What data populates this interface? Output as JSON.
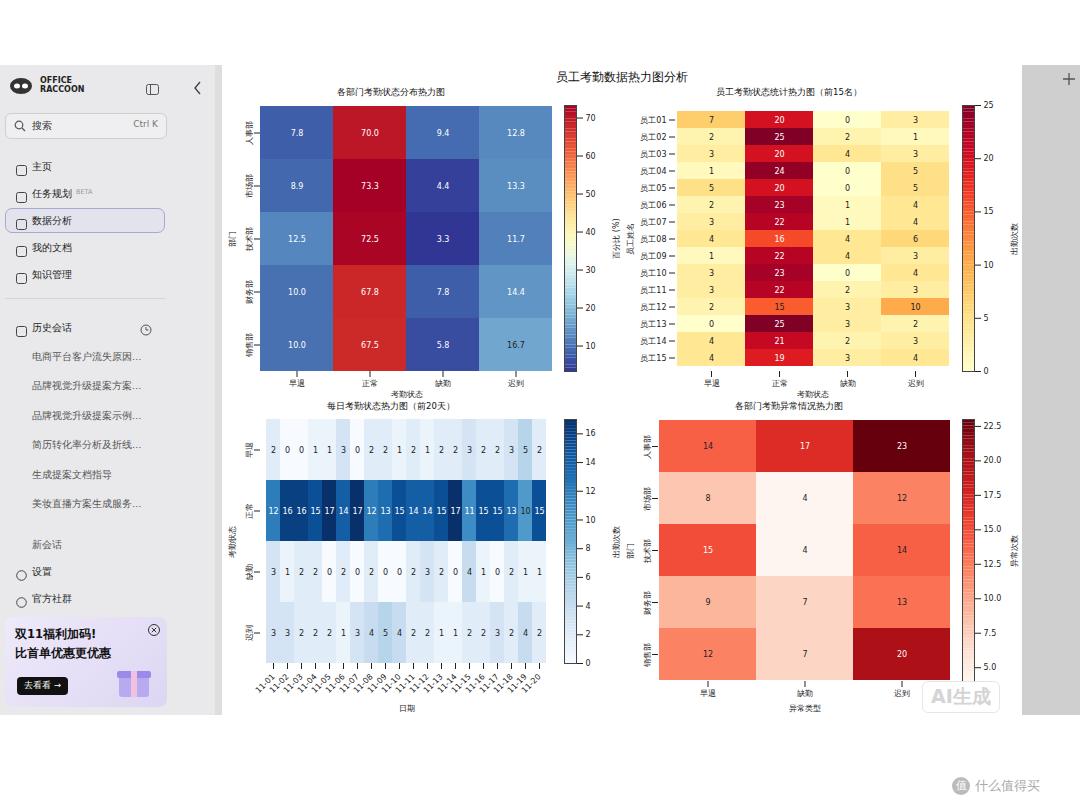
{
  "title": "员工考勤数据热力图分析",
  "chart_data": [
    {
      "type": "heatmap",
      "title": "各部门考勤状态分布热力图",
      "x_label": "考勤状态",
      "y_label": "部门",
      "x_categories": [
        "早退",
        "正常",
        "缺勤",
        "迟到"
      ],
      "y_categories": [
        "人事部",
        "市场部",
        "技术部",
        "财务部",
        "销售部"
      ],
      "values": [
        [
          7.8,
          70.0,
          9.4,
          12.8
        ],
        [
          8.9,
          73.3,
          4.4,
          13.3
        ],
        [
          12.5,
          72.5,
          3.3,
          11.7
        ],
        [
          10.0,
          67.8,
          7.8,
          14.4
        ],
        [
          10.0,
          67.5,
          5.8,
          16.7
        ]
      ],
      "value_labels": [
        [
          "7.8",
          "70.0",
          "9.4",
          "12.8"
        ],
        [
          "8.9",
          "73.3",
          "4.4",
          "13.3"
        ],
        [
          "12.5",
          "72.5",
          "3.3",
          "11.7"
        ],
        [
          "10.0",
          "67.8",
          "7.8",
          "14.4"
        ],
        [
          "10.0",
          "67.5",
          "5.8",
          "16.7"
        ]
      ],
      "data_labels": true,
      "color": "RdYlBu_r",
      "colorbar": {
        "label": "百分比 (%)",
        "range": [
          3.3,
          73.3
        ],
        "ticks": [
          10,
          20,
          30,
          40,
          50,
          60,
          70
        ]
      }
    },
    {
      "type": "heatmap",
      "title": "员工考勤状态统计热力图（前15名）",
      "x_label": "考勤状态",
      "y_label": "员工姓名",
      "x_categories": [
        "早退",
        "正常",
        "缺勤",
        "迟到"
      ],
      "y_categories": [
        "员工01",
        "员工02",
        "员工03",
        "员工04",
        "员工05",
        "员工06",
        "员工07",
        "员工08",
        "员工09",
        "员工10",
        "员工11",
        "员工12",
        "员工13",
        "员工14",
        "员工15"
      ],
      "values": [
        [
          7,
          20,
          0,
          3
        ],
        [
          2,
          25,
          2,
          1
        ],
        [
          3,
          20,
          4,
          3
        ],
        [
          1,
          24,
          0,
          5
        ],
        [
          5,
          20,
          0,
          5
        ],
        [
          2,
          23,
          1,
          4
        ],
        [
          3,
          22,
          1,
          4
        ],
        [
          4,
          16,
          4,
          6
        ],
        [
          1,
          22,
          4,
          3
        ],
        [
          3,
          23,
          0,
          4
        ],
        [
          3,
          22,
          2,
          3
        ],
        [
          2,
          15,
          3,
          10
        ],
        [
          0,
          25,
          3,
          2
        ],
        [
          4,
          21,
          2,
          3
        ],
        [
          4,
          19,
          3,
          4
        ]
      ],
      "data_labels": true,
      "color": "YlOrRd",
      "colorbar": {
        "label": "出勤次数",
        "range": [
          0,
          25
        ],
        "ticks": [
          0,
          5,
          10,
          15,
          20,
          25
        ]
      }
    },
    {
      "type": "heatmap",
      "title": "每日考勤状态热力图（前20天）",
      "x_label": "日期",
      "y_label": "考勤状态",
      "x_categories": [
        "11-01",
        "11-02",
        "11-03",
        "11-04",
        "11-05",
        "11-06",
        "11-07",
        "11-08",
        "11-09",
        "11-10",
        "11-11",
        "11-12",
        "11-13",
        "11-14",
        "11-15",
        "11-16",
        "11-17",
        "11-18",
        "11-19",
        "11-20"
      ],
      "y_categories": [
        "早退",
        "正常",
        "缺勤",
        "迟到"
      ],
      "values": [
        [
          2,
          0,
          0,
          1,
          1,
          3,
          0,
          2,
          2,
          1,
          2,
          1,
          2,
          2,
          3,
          2,
          2,
          3,
          5,
          2
        ],
        [
          12,
          16,
          16,
          15,
          17,
          14,
          17,
          12,
          13,
          15,
          14,
          14,
          15,
          17,
          11,
          15,
          15,
          13,
          10,
          15
        ],
        [
          3,
          1,
          2,
          2,
          0,
          2,
          0,
          2,
          0,
          0,
          2,
          3,
          2,
          0,
          4,
          1,
          0,
          2,
          1,
          1
        ],
        [
          3,
          3,
          2,
          2,
          2,
          1,
          3,
          4,
          5,
          4,
          2,
          2,
          1,
          1,
          2,
          2,
          3,
          2,
          4,
          2
        ]
      ],
      "data_labels": true,
      "color": "Blues",
      "colorbar": {
        "label": "出勤次数",
        "range": [
          0,
          17
        ],
        "ticks": [
          0,
          2,
          4,
          6,
          8,
          10,
          12,
          14,
          16
        ]
      }
    },
    {
      "type": "heatmap",
      "title": "各部门考勤异常情况热力图",
      "x_label": "异常类型",
      "y_label": "部门",
      "x_categories": [
        "早退",
        "缺勤",
        "迟到"
      ],
      "y_categories": [
        "人事部",
        "市场部",
        "技术部",
        "财务部",
        "销售部"
      ],
      "values": [
        [
          14,
          17,
          23
        ],
        [
          8,
          4,
          12
        ],
        [
          15,
          4,
          14
        ],
        [
          9,
          7,
          13
        ],
        [
          12,
          7,
          20
        ]
      ],
      "data_labels": true,
      "color": "Reds",
      "colorbar": {
        "label": "异常次数",
        "range": [
          4,
          23
        ],
        "ticks": [
          {
            "value": 5,
            "label": "5.0"
          },
          {
            "value": 7.5,
            "label": "7.5"
          },
          {
            "value": 10,
            "label": "10.0"
          },
          {
            "value": 12.5,
            "label": "12.5"
          },
          {
            "value": 15,
            "label": "15.0"
          },
          {
            "value": 17.5,
            "label": "17.5"
          },
          {
            "value": 20,
            "label": "20.0"
          },
          {
            "value": 22.5,
            "label": "22.5"
          }
        ]
      }
    }
  ],
  "sidebar": {
    "logo": [
      "OFFICE",
      "RACCOON"
    ],
    "search": "搜索",
    "search_shortcut": "Ctrl K",
    "menu": [
      {
        "label": "主页"
      },
      {
        "label": "任务规划",
        "badge": "BETA"
      },
      {
        "label": "数据分析",
        "active": true
      },
      {
        "label": "我的文档"
      },
      {
        "label": "知识管理"
      }
    ],
    "history_title": "历史会话",
    "history": [
      "电商平台客户流失原因…",
      "品牌视觉升级提案方案…",
      "品牌视觉升级提案示例…",
      "简历转化率分析及折线…",
      "生成提案文档指导",
      "美妆直播方案生成服务…",
      "新会话"
    ],
    "footer": [
      "设置",
      "官方社群"
    ],
    "promo": {
      "title": "双11福利加码!",
      "subtitle": "比首单优惠更优惠",
      "button": "去看看 →"
    }
  },
  "watermarks": {
    "chart": "AI生成",
    "site_icon": "值",
    "site": "什么值得买"
  }
}
